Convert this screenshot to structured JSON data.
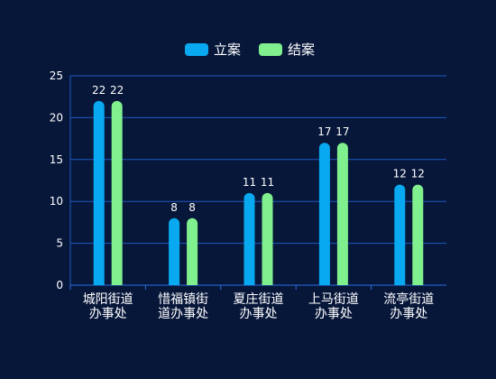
{
  "chart_data": {
    "type": "bar",
    "categories": [
      [
        "城阳街道",
        "办事处"
      ],
      [
        "惜福镇街",
        "道办事处"
      ],
      [
        "夏庄街道",
        "办事处"
      ],
      [
        "上马街道",
        "办事处"
      ],
      [
        "流亭街道",
        "办事处"
      ]
    ],
    "series": [
      {
        "name": "立案",
        "values": [
          22,
          8,
          11,
          17,
          12
        ],
        "color": "#08a9f1"
      },
      {
        "name": "结案",
        "values": [
          22,
          8,
          11,
          17,
          12
        ],
        "color": "#7ff08d"
      }
    ],
    "ylim": [
      0,
      25
    ],
    "yticks": [
      0,
      5,
      10,
      15,
      20,
      25
    ],
    "grid": true,
    "gridColor": "#1e58c0",
    "legend": "top-center",
    "showDataLabels": true
  }
}
